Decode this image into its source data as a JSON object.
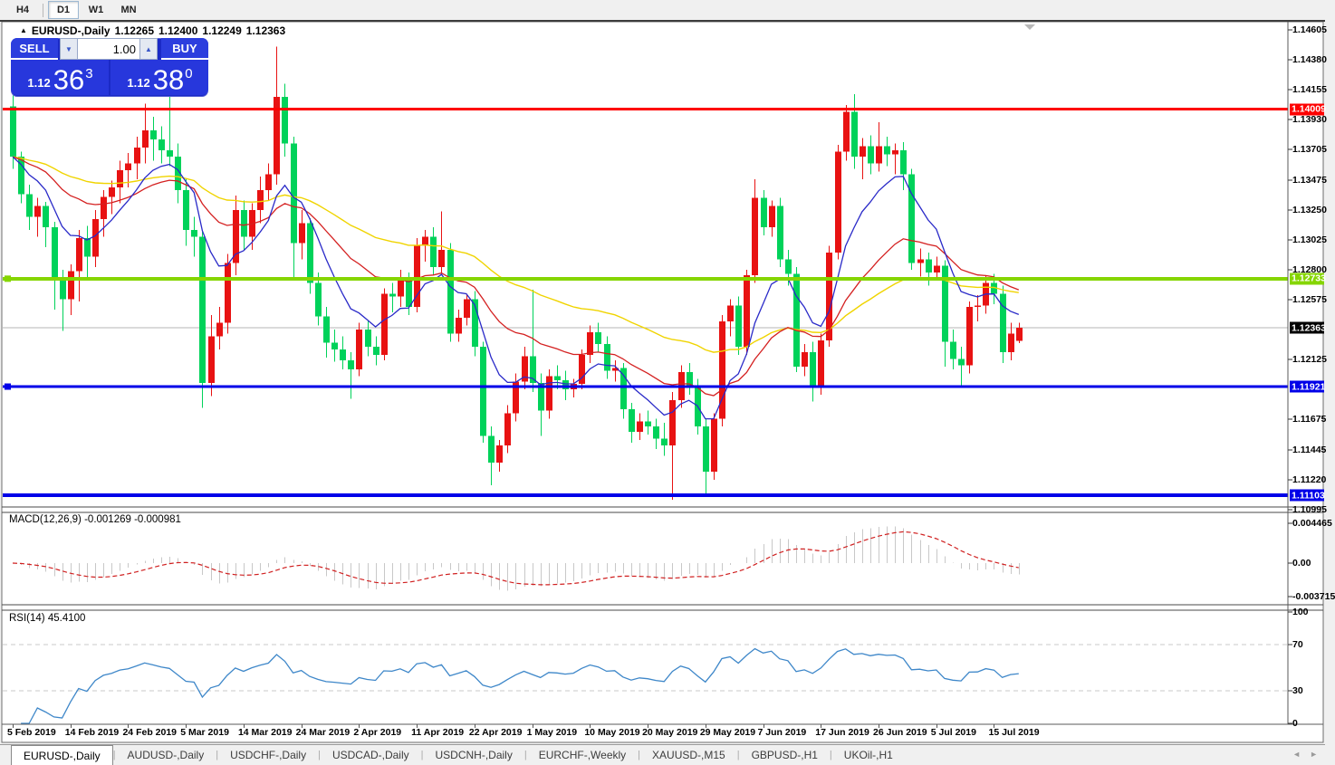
{
  "toolbar": {
    "timeframes": [
      {
        "label": "H4",
        "active": false
      },
      {
        "label": "D1",
        "active": true
      },
      {
        "label": "W1",
        "active": false
      },
      {
        "label": "MN",
        "active": false
      }
    ]
  },
  "chart": {
    "symbol_period": "EURUSD-,Daily",
    "open": "1.12265",
    "high": "1.12400",
    "low": "1.12249",
    "close": "1.12363"
  },
  "trade_panel": {
    "sell_label": "SELL",
    "buy_label": "BUY",
    "volume": "1.00",
    "down_arrow": "▼",
    "up_arrow": "▲",
    "sell_price": {
      "prefix": "1.12",
      "big": "36",
      "sup": "3"
    },
    "buy_price": {
      "prefix": "1.12",
      "big": "38",
      "sup": "0"
    }
  },
  "indicators": {
    "macd": {
      "name": "MACD(12,26,9)",
      "value_main": "-0.001269",
      "value_signal": "-0.000981",
      "axis": [
        {
          "label": "0.004465",
          "value": 0.004465
        },
        {
          "label": "0.00",
          "value": 0
        },
        {
          "label": "-0.003715",
          "value": -0.003715
        }
      ],
      "fast": 12,
      "slow": 26,
      "signal": 9
    },
    "rsi": {
      "name": "RSI(14)",
      "value": "45.4100",
      "period": 14,
      "axis": [
        {
          "label": "100",
          "value": 100
        },
        {
          "label": "70",
          "value": 70
        },
        {
          "label": "30",
          "value": 30
        },
        {
          "label": "0",
          "value": 0
        }
      ],
      "levels": [
        70,
        30
      ]
    }
  },
  "price_axis": {
    "ticks": [
      {
        "label": "1.14605",
        "price": 1.14605
      },
      {
        "label": "1.14380",
        "price": 1.1438
      },
      {
        "label": "1.14155",
        "price": 1.14155
      },
      {
        "label": "1.13930",
        "price": 1.1393
      },
      {
        "label": "1.13705",
        "price": 1.13705
      },
      {
        "label": "1.13475",
        "price": 1.13475
      },
      {
        "label": "1.13250",
        "price": 1.1325
      },
      {
        "label": "1.13025",
        "price": 1.13025
      },
      {
        "label": "1.12800",
        "price": 1.128
      },
      {
        "label": "1.12575",
        "price": 1.12575
      },
      {
        "label": "1.12125",
        "price": 1.12125
      },
      {
        "label": "1.11675",
        "price": 1.11675
      },
      {
        "label": "1.11445",
        "price": 1.11445
      },
      {
        "label": "1.11220",
        "price": 1.1122
      },
      {
        "label": "1.10995",
        "price": 1.10995
      }
    ],
    "badges": [
      {
        "text": "1.14009",
        "price": 1.14009,
        "bg": "#fe0000",
        "fg": "#ffffff"
      },
      {
        "text": "1.12733",
        "price": 1.12733,
        "bg": "#85d500",
        "fg": "#ffffff"
      },
      {
        "text": "1.12363",
        "price": 1.12363,
        "bg": "#000000",
        "fg": "#ffffff"
      },
      {
        "text": "1.11921",
        "price": 1.11921,
        "bg": "#0000e8",
        "fg": "#ffffff"
      },
      {
        "text": "1.11103",
        "price": 1.11103,
        "bg": "#0000e8",
        "fg": "#ffffff"
      }
    ]
  },
  "tabs": {
    "items": [
      {
        "label": "EURUSD-,Daily",
        "active": true
      },
      {
        "label": "AUDUSD-,Daily",
        "active": false
      },
      {
        "label": "USDCHF-,Daily",
        "active": false
      },
      {
        "label": "USDCAD-,Daily",
        "active": false
      },
      {
        "label": "USDCNH-,Daily",
        "active": false
      },
      {
        "label": "EURCHF-,Weekly",
        "active": false
      },
      {
        "label": "XAUUSD-,M15",
        "active": false
      },
      {
        "label": "GBPUSD-,H1",
        "active": false
      },
      {
        "label": "UKOil-,H1",
        "active": false
      }
    ],
    "scroll_left": "◄",
    "scroll_right": "►"
  },
  "chart_data": {
    "type": "candlestick",
    "symbol": "EURUSD-",
    "timeframe": "Daily",
    "title": "EURUSD-,Daily 1.12265 1.12400 1.12249 1.12363",
    "ylim": [
      1.11022,
      1.14653
    ],
    "macd_ylim": [
      -0.004444,
      0.005556
    ],
    "rsi_ylim": [
      0,
      100
    ],
    "grid": false,
    "colors": {
      "bull": "#e81212",
      "bear": "#00d25a",
      "ma_fast_blue": "#2a2ac8",
      "ma_mid_red": "#d42020",
      "ma_slow_yellow": "#f0d400",
      "macd_hist": "#c8c8c8",
      "macd_signal": "#d02020",
      "rsi_line": "#3e87c9",
      "level_dash": "#c8c8c8",
      "current_price_line": "#b4b4b4",
      "hline_red": "#fe0000",
      "hline_green": "#85d500",
      "hline_blue": "#0000e8"
    },
    "ma_periods": {
      "fast": 9,
      "mid": 25,
      "slow": 55
    },
    "hlines": [
      {
        "price": 1.14009,
        "color": "#fe0000",
        "width": 3,
        "handle": false
      },
      {
        "price": 1.12733,
        "color": "#85d500",
        "width": 4,
        "handle": true
      },
      {
        "price": 1.11921,
        "color": "#0000e8",
        "width": 3,
        "handle": true
      },
      {
        "price": 1.11103,
        "color": "#0000e8",
        "width": 4,
        "handle": false
      }
    ],
    "current_price": 1.12363,
    "date_labels": [
      {
        "label": "5 Feb 2019",
        "i": 0
      },
      {
        "label": "14 Feb 2019",
        "i": 7
      },
      {
        "label": "24 Feb 2019",
        "i": 14
      },
      {
        "label": "5 Mar 2019",
        "i": 21
      },
      {
        "label": "14 Mar 2019",
        "i": 28
      },
      {
        "label": "24 Mar 2019",
        "i": 35
      },
      {
        "label": "2 Apr 2019",
        "i": 42
      },
      {
        "label": "11 Apr 2019",
        "i": 49
      },
      {
        "label": "22 Apr 2019",
        "i": 56
      },
      {
        "label": "1 May 2019",
        "i": 63
      },
      {
        "label": "10 May 2019",
        "i": 70
      },
      {
        "label": "20 May 2019",
        "i": 77
      },
      {
        "label": "29 May 2019",
        "i": 84
      },
      {
        "label": "7 Jun 2019",
        "i": 91
      },
      {
        "label": "17 Jun 2019",
        "i": 98
      },
      {
        "label": "26 Jun 2019",
        "i": 105
      },
      {
        "label": "5 Jul 2019",
        "i": 112
      },
      {
        "label": "15 Jul 2019",
        "i": 119
      }
    ],
    "candles": [
      [
        1.1403,
        1.1411,
        1.1356,
        1.1365
      ],
      [
        1.1365,
        1.1369,
        1.133,
        1.1337
      ],
      [
        1.1337,
        1.1344,
        1.131,
        1.132
      ],
      [
        1.132,
        1.1334,
        1.1305,
        1.1328
      ],
      [
        1.1328,
        1.1331,
        1.1297,
        1.1312
      ],
      [
        1.1312,
        1.1316,
        1.125,
        1.1272
      ],
      [
        1.1272,
        1.128,
        1.1234,
        1.1258
      ],
      [
        1.1258,
        1.1284,
        1.1246,
        1.1279
      ],
      [
        1.1279,
        1.131,
        1.1256,
        1.1304
      ],
      [
        1.1304,
        1.1313,
        1.1272,
        1.129
      ],
      [
        1.129,
        1.1325,
        1.1282,
        1.1318
      ],
      [
        1.1318,
        1.134,
        1.1305,
        1.1335
      ],
      [
        1.1335,
        1.1347,
        1.1322,
        1.1342
      ],
      [
        1.1342,
        1.1362,
        1.133,
        1.1355
      ],
      [
        1.1355,
        1.1368,
        1.1342,
        1.136
      ],
      [
        1.136,
        1.138,
        1.1348,
        1.1372
      ],
      [
        1.1372,
        1.1405,
        1.136,
        1.1385
      ],
      [
        1.1385,
        1.1395,
        1.1362,
        1.1378
      ],
      [
        1.1378,
        1.1388,
        1.136,
        1.137
      ],
      [
        1.137,
        1.141,
        1.1358,
        1.1365
      ],
      [
        1.1365,
        1.1375,
        1.133,
        1.134
      ],
      [
        1.134,
        1.1348,
        1.1298,
        1.131
      ],
      [
        1.131,
        1.132,
        1.129,
        1.1305
      ],
      [
        1.1305,
        1.131,
        1.1176,
        1.1195
      ],
      [
        1.1195,
        1.1246,
        1.1185,
        1.123
      ],
      [
        1.123,
        1.1252,
        1.122,
        1.124
      ],
      [
        1.124,
        1.1292,
        1.1232,
        1.1285
      ],
      [
        1.1285,
        1.1336,
        1.1276,
        1.1325
      ],
      [
        1.1325,
        1.1332,
        1.1295,
        1.1305
      ],
      [
        1.1305,
        1.133,
        1.1295,
        1.1325
      ],
      [
        1.1325,
        1.135,
        1.1315,
        1.134
      ],
      [
        1.134,
        1.136,
        1.1332,
        1.1352
      ],
      [
        1.1352,
        1.1448,
        1.1344,
        1.141
      ],
      [
        1.141,
        1.142,
        1.1365,
        1.1375
      ],
      [
        1.1375,
        1.138,
        1.1273,
        1.13
      ],
      [
        1.13,
        1.1325,
        1.1288,
        1.1315
      ],
      [
        1.1315,
        1.1319,
        1.1262,
        1.127
      ],
      [
        1.127,
        1.1278,
        1.1238,
        1.1245
      ],
      [
        1.1245,
        1.1252,
        1.1214,
        1.1225
      ],
      [
        1.1225,
        1.1235,
        1.1211,
        1.122
      ],
      [
        1.122,
        1.123,
        1.1205,
        1.1212
      ],
      [
        1.1212,
        1.1218,
        1.1183,
        1.1205
      ],
      [
        1.1205,
        1.124,
        1.12,
        1.1235
      ],
      [
        1.1235,
        1.1242,
        1.1215,
        1.1222
      ],
      [
        1.1222,
        1.123,
        1.1208,
        1.1216
      ],
      [
        1.1216,
        1.1266,
        1.1212,
        1.1262
      ],
      [
        1.1262,
        1.127,
        1.1248,
        1.126
      ],
      [
        1.126,
        1.128,
        1.1252,
        1.1272
      ],
      [
        1.1272,
        1.1278,
        1.1246,
        1.1252
      ],
      [
        1.1252,
        1.1304,
        1.1248,
        1.1298
      ],
      [
        1.1298,
        1.131,
        1.1286,
        1.1305
      ],
      [
        1.1305,
        1.1312,
        1.1276,
        1.1282
      ],
      [
        1.1282,
        1.1324,
        1.1278,
        1.1295
      ],
      [
        1.1295,
        1.13,
        1.1226,
        1.1232
      ],
      [
        1.1232,
        1.125,
        1.1226,
        1.1244
      ],
      [
        1.1244,
        1.1262,
        1.1238,
        1.1258
      ],
      [
        1.1258,
        1.1264,
        1.1215,
        1.1222
      ],
      [
        1.1222,
        1.1226,
        1.115,
        1.1155
      ],
      [
        1.1155,
        1.1162,
        1.1118,
        1.1135
      ],
      [
        1.1135,
        1.1152,
        1.1128,
        1.1148
      ],
      [
        1.1148,
        1.1178,
        1.1142,
        1.1172
      ],
      [
        1.1172,
        1.1202,
        1.1166,
        1.1196
      ],
      [
        1.1196,
        1.1222,
        1.119,
        1.1215
      ],
      [
        1.1215,
        1.1265,
        1.1188,
        1.1195
      ],
      [
        1.1195,
        1.1202,
        1.1155,
        1.1174
      ],
      [
        1.1174,
        1.1205,
        1.1168,
        1.12
      ],
      [
        1.12,
        1.1208,
        1.119,
        1.1197
      ],
      [
        1.1197,
        1.1204,
        1.1182,
        1.119
      ],
      [
        1.119,
        1.1198,
        1.1184,
        1.1194
      ],
      [
        1.1194,
        1.122,
        1.119,
        1.1216
      ],
      [
        1.1216,
        1.1238,
        1.121,
        1.1233
      ],
      [
        1.1233,
        1.124,
        1.1218,
        1.1224
      ],
      [
        1.1224,
        1.123,
        1.1198,
        1.1204
      ],
      [
        1.1204,
        1.1212,
        1.1196,
        1.1206
      ],
      [
        1.1206,
        1.121,
        1.1168,
        1.1175
      ],
      [
        1.1175,
        1.118,
        1.115,
        1.1158
      ],
      [
        1.1158,
        1.1172,
        1.1152,
        1.1166
      ],
      [
        1.1166,
        1.1174,
        1.1156,
        1.1162
      ],
      [
        1.1162,
        1.1168,
        1.1145,
        1.1153
      ],
      [
        1.1153,
        1.1165,
        1.114,
        1.1148
      ],
      [
        1.1148,
        1.1188,
        1.1107,
        1.1182
      ],
      [
        1.1182,
        1.1208,
        1.1176,
        1.1203
      ],
      [
        1.1203,
        1.121,
        1.1186,
        1.1193
      ],
      [
        1.1193,
        1.1198,
        1.1156,
        1.1162
      ],
      [
        1.1162,
        1.1168,
        1.111,
        1.1128
      ],
      [
        1.1128,
        1.1172,
        1.1122,
        1.1168
      ],
      [
        1.1168,
        1.1246,
        1.1162,
        1.1241
      ],
      [
        1.1241,
        1.1258,
        1.123,
        1.1253
      ],
      [
        1.1253,
        1.126,
        1.1216,
        1.1222
      ],
      [
        1.1222,
        1.128,
        1.1216,
        1.1276
      ],
      [
        1.1276,
        1.1348,
        1.127,
        1.1334
      ],
      [
        1.1334,
        1.134,
        1.1306,
        1.1312
      ],
      [
        1.1312,
        1.1332,
        1.1305,
        1.1328
      ],
      [
        1.1328,
        1.1334,
        1.1282,
        1.1288
      ],
      [
        1.1288,
        1.1295,
        1.1268,
        1.1277
      ],
      [
        1.1277,
        1.1282,
        1.1203,
        1.1207
      ],
      [
        1.1207,
        1.1224,
        1.12,
        1.1218
      ],
      [
        1.1218,
        1.1226,
        1.1181,
        1.1193
      ],
      [
        1.1193,
        1.1232,
        1.1186,
        1.1227
      ],
      [
        1.1227,
        1.1298,
        1.1222,
        1.1293
      ],
      [
        1.1293,
        1.1374,
        1.1288,
        1.1369
      ],
      [
        1.1369,
        1.1404,
        1.1362,
        1.1399
      ],
      [
        1.1399,
        1.1412,
        1.1356,
        1.1365
      ],
      [
        1.1365,
        1.1379,
        1.1348,
        1.1373
      ],
      [
        1.1373,
        1.1381,
        1.1352,
        1.136
      ],
      [
        1.136,
        1.1391,
        1.1354,
        1.1373
      ],
      [
        1.1373,
        1.138,
        1.1358,
        1.1367
      ],
      [
        1.1367,
        1.1375,
        1.1352,
        1.137
      ],
      [
        1.137,
        1.1376,
        1.134,
        1.1352
      ],
      [
        1.1352,
        1.1356,
        1.128,
        1.1285
      ],
      [
        1.1285,
        1.1296,
        1.1275,
        1.1288
      ],
      [
        1.1288,
        1.1293,
        1.1268,
        1.1278
      ],
      [
        1.1278,
        1.129,
        1.1272,
        1.1283
      ],
      [
        1.1283,
        1.1287,
        1.1207,
        1.1226
      ],
      [
        1.1226,
        1.1235,
        1.1205,
        1.1213
      ],
      [
        1.1213,
        1.1222,
        1.1193,
        1.1208
      ],
      [
        1.1208,
        1.1256,
        1.1202,
        1.1252
      ],
      [
        1.1252,
        1.1261,
        1.1241,
        1.1253
      ],
      [
        1.1253,
        1.1276,
        1.1247,
        1.127
      ],
      [
        1.127,
        1.1277,
        1.1254,
        1.1262
      ],
      [
        1.1262,
        1.1268,
        1.121,
        1.1218
      ],
      [
        1.1218,
        1.124,
        1.1212,
        1.1232
      ],
      [
        1.12265,
        1.124,
        1.12249,
        1.12363
      ]
    ]
  }
}
